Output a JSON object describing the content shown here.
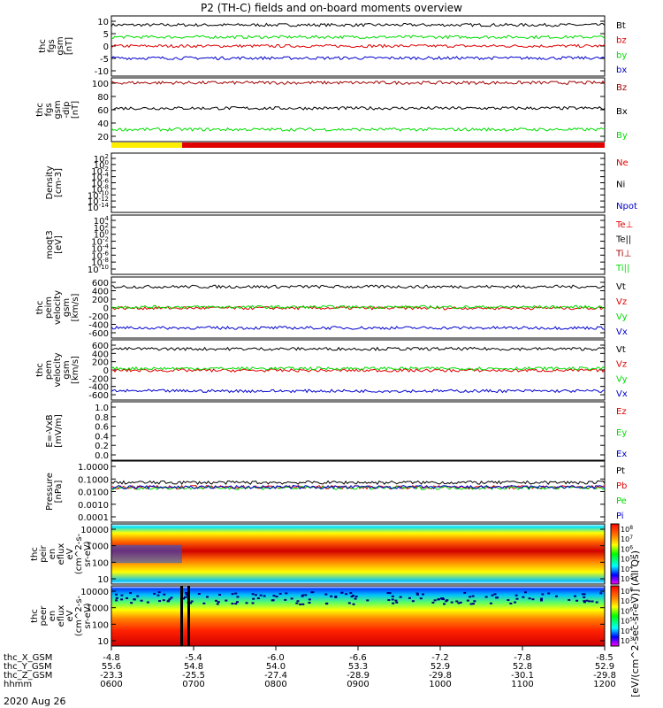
{
  "title": "P2 (TH-C) fields and on-board moments overview",
  "date": "2020 Aug 26",
  "colorbar_label": "[eV/(cm^2-sec-sr-eV)] (All Qs)",
  "colors": {
    "black": "#000000",
    "red": "#e00000",
    "green": "#00dd00",
    "blue": "#0000cc",
    "darkred": "#a00000",
    "yellow": "#ffee00"
  },
  "xaxis": {
    "rows": [
      {
        "name": "thc_X_GSM",
        "values": [
          "-4.8",
          "-5.4",
          "-6.0",
          "-6.6",
          "-7.2",
          "-7.8",
          "-8.5"
        ]
      },
      {
        "name": "thc_Y_GSM",
        "values": [
          "55.6",
          "54.8",
          "54.0",
          "53.3",
          "52.9",
          "52.8",
          "52.9"
        ]
      },
      {
        "name": "thc_Z_GSM",
        "values": [
          "-23.3",
          "-25.5",
          "-27.4",
          "-28.9",
          "-29.8",
          "-30.1",
          "-29.8"
        ]
      },
      {
        "name": "hhmm",
        "values": [
          "0600",
          "0700",
          "0800",
          "0900",
          "1000",
          "1100",
          "1200"
        ]
      }
    ]
  },
  "chart_data": [
    {
      "type": "line",
      "id": "fgs_gsm",
      "ylabel": [
        "thc",
        "fgs",
        "gsm",
        "[nT]"
      ],
      "ylim": [
        -10,
        10
      ],
      "ticks": [
        "10",
        "5",
        "0",
        "-5",
        "-10"
      ],
      "series": [
        {
          "name": "Bt",
          "color": "black",
          "level": 7
        },
        {
          "name": "bz",
          "color": "red",
          "level": 0
        },
        {
          "name": "by",
          "color": "green",
          "level": 3
        },
        {
          "name": "bx",
          "color": "blue",
          "level": -4
        }
      ]
    },
    {
      "type": "line",
      "id": "fgs_gsm_dipole",
      "ylabel": [
        "thc",
        "fgs",
        "gsm",
        "-dip",
        "[nT]"
      ],
      "ylim": [
        0,
        105
      ],
      "ticks": [
        "100",
        "80",
        "60",
        "40",
        "20"
      ],
      "series": [
        {
          "name": "Bz",
          "color": "darkred",
          "level": 97
        },
        {
          "name": "Bx",
          "color": "black",
          "level": 55
        },
        {
          "name": "By",
          "color": "green",
          "level": 20
        }
      ]
    },
    {
      "type": "line",
      "id": "density",
      "ylabel": [
        "Density",
        "[cm-3]"
      ],
      "ylim": [
        "1e-14",
        "1e2"
      ],
      "ticks": [
        "10^2",
        "10^0",
        "10^-2",
        "10^-4",
        "10^-6",
        "10^-8",
        "10^-10",
        "10^-12",
        "10^-14"
      ],
      "series": [
        {
          "name": "Ne",
          "color": "red"
        },
        {
          "name": "Ni",
          "color": "black"
        },
        {
          "name": "Npot",
          "color": "blue"
        }
      ]
    },
    {
      "type": "line",
      "id": "temperature",
      "ylabel": [
        "moqt3",
        "[eV]"
      ],
      "ylim": [
        "1e-10",
        "1e4"
      ],
      "ticks": [
        "10^4",
        "10^2",
        "10^0",
        "10^-2",
        "10^-4",
        "10^-6",
        "10^-8",
        "10^-10"
      ],
      "series": [
        {
          "name": "Te⊥",
          "color": "red"
        },
        {
          "name": "Te||",
          "color": "black"
        },
        {
          "name": "Ti⊥",
          "color": "darkred"
        },
        {
          "name": "Ti||",
          "color": "green"
        }
      ]
    },
    {
      "type": "line",
      "id": "peim_velocity",
      "ylabel": [
        "thc",
        "peim",
        "velocity",
        "gsm",
        "[km/s]"
      ],
      "ylim": [
        -600,
        600
      ],
      "ticks": [
        "600",
        "400",
        "200",
        "0",
        "-200",
        "-400",
        "-600"
      ],
      "series": [
        {
          "name": "Vt",
          "color": "black",
          "level": 410
        },
        {
          "name": "Vz",
          "color": "red",
          "level": -10
        },
        {
          "name": "Vy",
          "color": "green",
          "level": 10
        },
        {
          "name": "Vx",
          "color": "blue",
          "level": -400
        }
      ]
    },
    {
      "type": "line",
      "id": "pem_velocity",
      "ylabel": [
        "thc",
        "pem",
        "velocity",
        "gsm",
        "[km/s]"
      ],
      "ylim": [
        -600,
        600
      ],
      "ticks": [
        "600",
        "400",
        "200",
        "0",
        "-200",
        "-400",
        "-600"
      ],
      "series": [
        {
          "name": "Vt",
          "color": "black",
          "level": 420
        },
        {
          "name": "Vz",
          "color": "red",
          "level": -10
        },
        {
          "name": "Vy",
          "color": "green",
          "level": 30
        },
        {
          "name": "Vx",
          "color": "blue",
          "level": -420
        }
      ]
    },
    {
      "type": "line",
      "id": "efield",
      "ylabel": [
        "E=-VxB",
        "[mV/m]"
      ],
      "ylim": [
        0,
        1
      ],
      "ticks": [
        "1.0",
        "0.8",
        "0.6",
        "0.4",
        "0.2",
        "0.0"
      ],
      "series": [
        {
          "name": "Ez",
          "color": "red"
        },
        {
          "name": "Ey",
          "color": "green"
        },
        {
          "name": "Ex",
          "color": "blue"
        }
      ]
    },
    {
      "type": "line",
      "id": "pressure",
      "ylabel": [
        "Pressure",
        "[nPa]"
      ],
      "ylim": [
        "1e-4",
        "1e0"
      ],
      "ticks": [
        "1.0000",
        "0.1000",
        "0.0100",
        "0.0010",
        "0.0001"
      ],
      "series": [
        {
          "name": "Pt",
          "color": "black",
          "level": 0.04
        },
        {
          "name": "Pb",
          "color": "red",
          "level": 0.02
        },
        {
          "name": "Pe",
          "color": "green",
          "level": 0.018
        },
        {
          "name": "Pi",
          "color": "blue",
          "level": 0.02
        }
      ]
    },
    {
      "type": "heatmap",
      "id": "peir_eflux",
      "ylabel": [
        "thc",
        "peir",
        "en",
        "eflux",
        "eV",
        "(cm^2-s-",
        "sr-eV)"
      ],
      "ticks": [
        "10000",
        "1000",
        "100",
        "10"
      ]
    },
    {
      "type": "heatmap",
      "id": "peer_eflux",
      "ylabel": [
        "thc",
        "peer",
        "en",
        "eflux",
        "eV",
        "(cm^2-s-",
        "sr-eV)"
      ],
      "ticks": [
        "10000",
        "1000",
        "100",
        "10"
      ]
    }
  ],
  "colorbar_ticks": [
    "10^8",
    "10^7",
    "10^6",
    "10^5",
    "10^4",
    "10^3",
    "10^8",
    "10^7",
    "10^6",
    "10^5",
    "10^4",
    "10^3"
  ]
}
